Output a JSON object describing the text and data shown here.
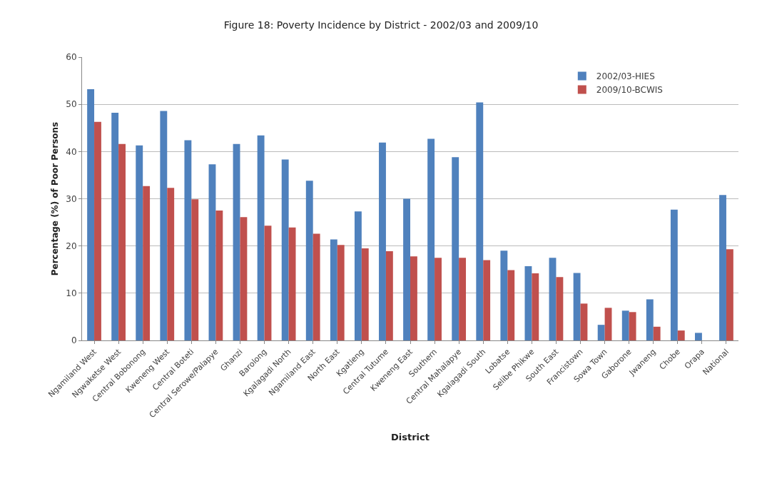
{
  "chart_data": {
    "type": "bar",
    "title": "Figure 18: Poverty Incidence by District - 2002/03 and 2009/10",
    "xlabel": "District",
    "ylabel": "Percentage (%) of Poor Persons",
    "categories": [
      "Ngamiland West",
      "Ngwaketse West",
      "Central Bobonong",
      "Kweneng West",
      "Central Boteti",
      "Central Serowe/Palapye",
      "Ghanzi",
      "Barolong",
      "Kgalagadi North",
      "Ngamiland East",
      "North East",
      "Kgatleng",
      "Central Tutume",
      "Kweneng East",
      "Southern",
      "Central Mahalapye",
      "Kgalagadi South",
      "Lobatse",
      "Selibe Phikwe",
      "South East",
      "Francistown",
      "Sowa Town",
      "Gaborone",
      "Jwaneng",
      "Chobe",
      "Orapa",
      "National"
    ],
    "series": [
      {
        "name": "2002/03-HIES",
        "color": "#4f81bd",
        "values": [
          53.2,
          48.2,
          41.3,
          48.6,
          42.4,
          37.3,
          41.6,
          43.4,
          38.3,
          33.8,
          21.4,
          27.3,
          41.9,
          30.0,
          42.7,
          38.8,
          50.4,
          19.0,
          15.7,
          17.5,
          14.3,
          3.3,
          6.3,
          8.7,
          27.7,
          1.6,
          30.8
        ]
      },
      {
        "name": "2009/10-BCWIS",
        "color": "#c0504d",
        "values": [
          46.3,
          41.6,
          32.7,
          32.3,
          29.9,
          27.5,
          26.1,
          24.3,
          23.9,
          22.6,
          20.2,
          19.5,
          18.9,
          17.8,
          17.5,
          17.5,
          17.0,
          14.9,
          14.2,
          13.4,
          7.8,
          6.9,
          6.0,
          2.9,
          2.1,
          null,
          19.3
        ]
      }
    ],
    "ylim": [
      0,
      60
    ],
    "yticks": [
      0,
      10,
      20,
      30,
      40,
      50,
      60
    ],
    "grid": "y",
    "legend": "top right"
  }
}
